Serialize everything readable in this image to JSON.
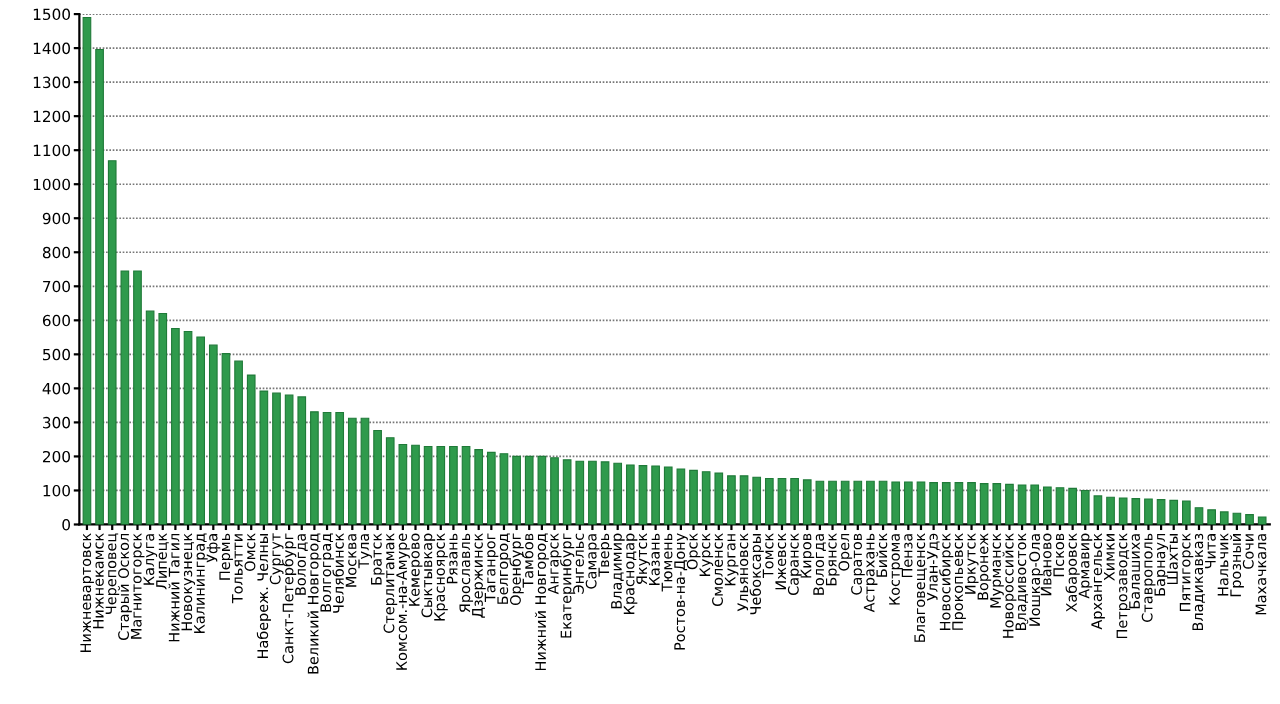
{
  "chart_data": {
    "type": "bar",
    "categories": [
      "Нижневартовск",
      "Нижнекамск",
      "Череповец",
      "Старый Оскол",
      "Магнитогорск",
      "Калуга",
      "Липецк",
      "Нижний Тагил",
      "Новокузнецк",
      "Калининград",
      "Уфа",
      "Пермь",
      "Тольятти",
      "Омск",
      "Набереж. Челны",
      "Сургут",
      "Санкт-Петербург",
      "Вологда",
      "Великий Новгород",
      "Волгоград",
      "Челябинск",
      "Москва",
      "Тула",
      "Братск",
      "Стерлитамак",
      "Комсом.-на-Амуре",
      "Кемерово",
      "Сыктывкар",
      "Красноярск",
      "Рязань",
      "Ярославль",
      "Дзержинск",
      "Таганрог",
      "Белгород",
      "Оренбург",
      "Тамбов",
      "Нижний Новгород",
      "Ангарск",
      "Екатеринбург",
      "Энгельс",
      "Самара",
      "Тверь",
      "Владимир",
      "Краснодар",
      "Якутск",
      "Казань",
      "Тюмень",
      "Ростов-на-Дону",
      "Орск",
      "Курск",
      "Смоленск",
      "Курган",
      "Ульяновск",
      "Чебоксары",
      "Томск",
      "Ижевск",
      "Саранск",
      "Киров",
      "Вологда",
      "Брянск",
      "Орел",
      "Саратов",
      "Астрахань",
      "Бийск",
      "Кострома",
      "Пенза",
      "Благовещенск",
      "Улан-Удэ",
      "Новосибирск",
      "Прокопьевск",
      "Иркутск",
      "Воронеж",
      "Мурманск",
      "Новороссийск",
      "Владивосток",
      "Йошкар-Ола",
      "Иваново",
      "Псков",
      "Хабаровск",
      "Армавир",
      "Архангельск",
      "Химки",
      "Петрозаводск",
      "Балашиха",
      "Ставрополь",
      "Барнаул",
      "Шахты",
      "Пятигорск",
      "Владикавказ",
      "Чита",
      "Нальчик",
      "Грозный",
      "Сочи",
      "Махачкала"
    ],
    "values": [
      1490,
      1396,
      1069,
      745,
      745,
      627,
      620,
      576,
      567,
      551,
      527,
      502,
      480,
      439,
      392,
      386,
      380,
      375,
      331,
      329,
      329,
      312,
      312,
      276,
      255,
      235,
      233,
      229,
      229,
      229,
      229,
      220,
      212,
      208,
      200,
      200,
      200,
      196,
      190,
      186,
      186,
      184,
      180,
      175,
      173,
      172,
      169,
      163,
      159,
      155,
      151,
      143,
      143,
      139,
      135,
      135,
      135,
      131,
      127,
      127,
      127,
      127,
      127,
      127,
      125,
      125,
      125,
      123,
      123,
      123,
      123,
      120,
      120,
      118,
      116,
      116,
      110,
      108,
      106,
      100,
      84,
      80,
      78,
      76,
      75,
      73,
      71,
      69,
      49,
      43,
      37,
      33,
      29,
      22
    ],
    "color": "#2f9a4c",
    "ylim": [
      0,
      1500
    ],
    "yticks": [
      0,
      100,
      200,
      300,
      400,
      500,
      600,
      700,
      800,
      900,
      1000,
      1100,
      1200,
      1300,
      1400,
      1500
    ],
    "grid": "y"
  }
}
